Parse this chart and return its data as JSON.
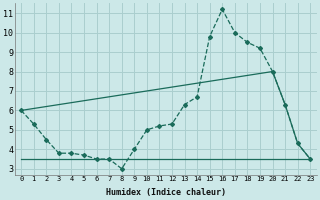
{
  "xlabel": "Humidex (Indice chaleur)",
  "bg_color": "#cce8e8",
  "grid_color": "#aacece",
  "line_color": "#1a6b5a",
  "xlim": [
    -0.5,
    23.5
  ],
  "ylim": [
    2.7,
    11.5
  ],
  "yticks": [
    3,
    4,
    5,
    6,
    7,
    8,
    9,
    10,
    11
  ],
  "xticks": [
    0,
    1,
    2,
    3,
    4,
    5,
    6,
    7,
    8,
    9,
    10,
    11,
    12,
    13,
    14,
    15,
    16,
    17,
    18,
    19,
    20,
    21,
    22,
    23
  ],
  "line1_x": [
    0,
    1,
    2,
    3,
    4,
    5,
    6,
    7,
    8,
    9,
    10,
    11,
    12,
    13,
    14,
    15,
    16,
    17,
    18,
    19,
    20,
    21,
    22,
    23
  ],
  "line1_y": [
    6.0,
    5.3,
    4.5,
    3.8,
    3.8,
    3.7,
    3.5,
    3.5,
    3.0,
    4.0,
    5.0,
    5.2,
    5.3,
    6.3,
    6.7,
    9.8,
    11.2,
    10.0,
    9.5,
    9.2,
    8.0,
    6.3,
    4.3,
    3.5
  ],
  "line2_x": [
    0,
    20,
    21,
    22,
    23
  ],
  "line2_y": [
    6.0,
    8.0,
    6.3,
    4.3,
    3.5
  ],
  "line3_x": [
    0,
    1,
    2,
    3,
    4,
    5,
    6,
    7,
    8,
    9,
    10,
    11,
    12,
    13,
    14,
    15,
    16,
    17,
    18,
    19,
    20,
    21,
    22,
    23
  ],
  "line3_y": [
    3.5,
    3.5,
    3.5,
    3.5,
    3.5,
    3.5,
    3.5,
    3.5,
    3.5,
    3.5,
    3.5,
    3.5,
    3.5,
    3.5,
    3.5,
    3.5,
    3.5,
    3.5,
    3.5,
    3.5,
    3.5,
    3.5,
    3.5,
    3.5
  ]
}
